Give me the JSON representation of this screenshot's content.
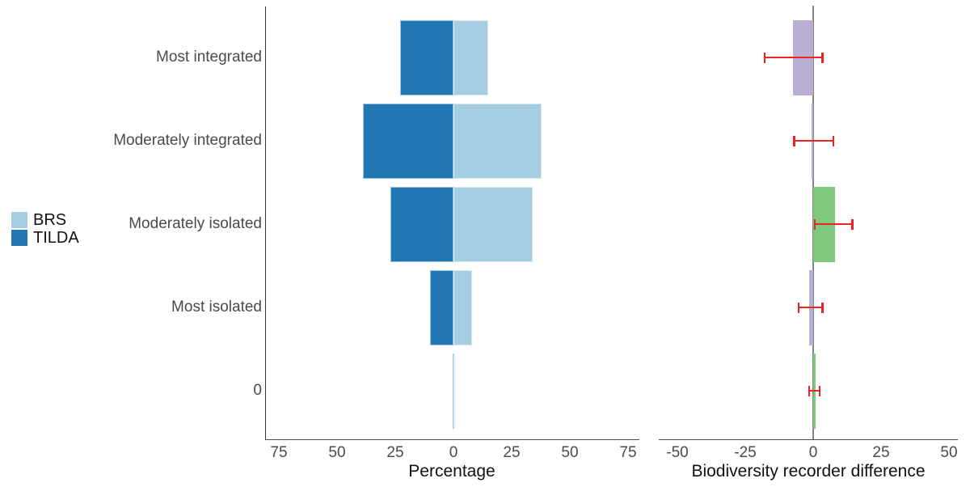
{
  "colors": {
    "brs_light_blue": "#a6cee3",
    "tilda_dark_blue": "#2176b4",
    "positive_green": "#7fc97f",
    "negative_purple": "#b9aed3",
    "error_bar_red": "#ee2222",
    "zero_line_gray": "#848484",
    "background": "#ffffff"
  },
  "legend": {
    "items": [
      {
        "label": "BRS",
        "color": "#a6cee3"
      },
      {
        "label": "TILDA",
        "color": "#2176b4"
      }
    ]
  },
  "chart_data": [
    {
      "type": "bar",
      "subtype": "horizontal-diverging-pyramid",
      "title": "",
      "categories": [
        "Most integrated",
        "Moderately integrated",
        "Moderately isolated",
        "Most isolated",
        "0"
      ],
      "series": [
        {
          "name": "TILDA",
          "side": "left",
          "color": "#2176b4",
          "values": [
            23,
            39,
            27,
            10,
            0.5
          ]
        },
        {
          "name": "BRS",
          "side": "right",
          "color": "#a6cee3",
          "values": [
            15,
            38,
            34,
            8,
            0.5
          ]
        }
      ],
      "xlabel": "Percentage",
      "xtick_labels": [
        "75",
        "50",
        "25",
        "0",
        "25",
        "50",
        "75"
      ],
      "xtick_values": [
        -75,
        -50,
        -25,
        0,
        25,
        50,
        75
      ],
      "xlim": [
        -80,
        80
      ],
      "grid": false,
      "legend_position": "left-middle"
    },
    {
      "type": "bar",
      "subtype": "horizontal-difference-with-error-bars",
      "title": "",
      "categories": [
        "Most integrated",
        "Moderately integrated",
        "Moderately isolated",
        "Most isolated",
        "0"
      ],
      "values": [
        -7.5,
        -0.5,
        8,
        -1.5,
        0.8
      ],
      "bar_colors": [
        "#b9aed3",
        "#b9aed3",
        "#7fc97f",
        "#b9aed3",
        "#7fc97f"
      ],
      "error_bars": [
        [
          -18,
          3.5
        ],
        [
          -7,
          7.5
        ],
        [
          0.5,
          14.5
        ],
        [
          -5.5,
          3.5
        ],
        [
          -1.5,
          2.5
        ]
      ],
      "zero_reference_line": 0,
      "xlabel": "Biodiversity recorder difference",
      "xtick_labels": [
        "-50",
        "-25",
        "0",
        "25",
        "50"
      ],
      "xtick_values": [
        -50,
        -25,
        0,
        25,
        50
      ],
      "xlim": [
        -57,
        53
      ],
      "grid": false
    }
  ]
}
